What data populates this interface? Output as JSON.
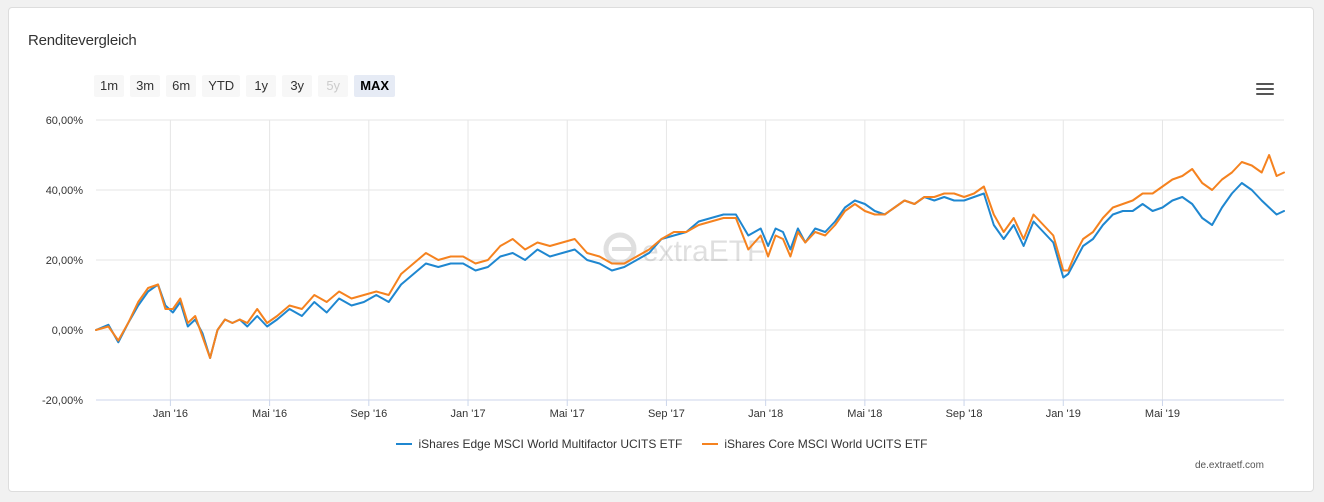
{
  "card": {
    "title": "Renditevergleich"
  },
  "range_selector": {
    "buttons": [
      {
        "label": "1m",
        "state": "normal"
      },
      {
        "label": "3m",
        "state": "normal"
      },
      {
        "label": "6m",
        "state": "normal"
      },
      {
        "label": "YTD",
        "state": "normal"
      },
      {
        "label": "1y",
        "state": "normal"
      },
      {
        "label": "3y",
        "state": "normal"
      },
      {
        "label": "5y",
        "state": "disabled"
      },
      {
        "label": "MAX",
        "state": "selected"
      }
    ]
  },
  "menu": {
    "icon": "hamburger-menu-icon"
  },
  "watermark": {
    "text": "extraETF",
    "icon": "extraetf-logo-icon"
  },
  "credit": "de.extraetf.com",
  "chart_data": {
    "type": "line",
    "x_tick_labels": [
      "Jan '16",
      "Mai '16",
      "Sep '16",
      "Jan '17",
      "Mai '17",
      "Sep '17",
      "Jan '18",
      "Mai '18",
      "Sep '18",
      "Jan '19",
      "Mai '19"
    ],
    "x_ticks_month_index": [
      3,
      7,
      11,
      15,
      19,
      23,
      27,
      31,
      35,
      39,
      43
    ],
    "x_range_month_index": [
      0,
      47.9
    ],
    "y_tick_labels": [
      "60,00%",
      "40,00%",
      "20,00%",
      "0,00%",
      "-20,00%"
    ],
    "y_ticks": [
      60,
      40,
      20,
      0,
      -20
    ],
    "ylim": [
      -20,
      60
    ],
    "grid": "on",
    "legend_position": "bottom-center",
    "series": [
      {
        "name": "iShares Edge MSCI World Multifactor UCITS ETF",
        "color": "#1f87d0",
        "x": [
          0,
          0.5,
          0.9,
          1.3,
          1.7,
          2.1,
          2.5,
          2.8,
          3.1,
          3.4,
          3.7,
          4.0,
          4.3,
          4.6,
          4.9,
          5.2,
          5.5,
          5.8,
          6.1,
          6.5,
          6.9,
          7.3,
          7.8,
          8.3,
          8.8,
          9.3,
          9.8,
          10.3,
          10.8,
          11.3,
          11.8,
          12.3,
          12.8,
          13.3,
          13.8,
          14.3,
          14.8,
          15.3,
          15.8,
          16.3,
          16.8,
          17.3,
          17.8,
          18.3,
          18.8,
          19.3,
          19.8,
          20.3,
          20.8,
          21.3,
          21.8,
          22.3,
          22.8,
          23.3,
          23.8,
          24.3,
          24.8,
          25.3,
          25.8,
          26.3,
          26.8,
          27.1,
          27.4,
          27.7,
          28.0,
          28.3,
          28.6,
          29.0,
          29.4,
          29.8,
          30.2,
          30.6,
          31.0,
          31.4,
          31.8,
          32.2,
          32.6,
          33.0,
          33.4,
          33.8,
          34.2,
          34.6,
          35.0,
          35.4,
          35.8,
          36.2,
          36.6,
          37.0,
          37.4,
          37.8,
          38.2,
          38.6,
          38.8,
          39.0,
          39.2,
          39.5,
          39.8,
          40.2,
          40.6,
          41.0,
          41.4,
          41.8,
          42.2,
          42.6,
          43.0,
          43.4,
          43.8,
          44.2,
          44.6,
          45.0,
          45.4,
          45.8,
          46.2,
          46.6,
          47.0,
          47.3,
          47.6,
          47.9
        ],
        "values": [
          0,
          1.5,
          -3.5,
          2,
          7,
          11,
          13,
          7,
          5,
          8,
          1,
          3,
          -1,
          -8,
          0,
          3,
          2,
          3,
          1,
          4,
          1,
          3,
          6,
          4,
          8,
          5,
          9,
          7,
          8,
          10,
          8,
          13,
          16,
          19,
          18,
          19,
          19,
          17,
          18,
          21,
          22,
          20,
          23,
          21,
          22,
          23,
          20,
          19,
          17,
          18,
          20,
          22,
          26,
          27,
          28,
          31,
          32,
          33,
          33,
          27,
          29,
          24,
          29,
          28,
          23,
          29,
          25,
          29,
          28,
          31,
          35,
          37,
          36,
          34,
          33,
          35,
          37,
          36,
          38,
          37,
          38,
          37,
          37,
          38,
          39,
          30,
          26,
          30,
          24,
          31,
          28,
          25,
          20,
          15,
          16,
          20,
          24,
          26,
          30,
          33,
          34,
          34,
          36,
          34,
          35,
          37,
          38,
          36,
          32,
          30,
          35,
          39,
          42,
          40,
          37,
          35,
          33,
          34
        ]
      },
      {
        "name": "iShares Core MSCI World UCITS ETF",
        "color": "#f5821f",
        "x": [
          0,
          0.5,
          0.9,
          1.3,
          1.7,
          2.1,
          2.5,
          2.8,
          3.1,
          3.4,
          3.7,
          4.0,
          4.3,
          4.6,
          4.9,
          5.2,
          5.5,
          5.8,
          6.1,
          6.5,
          6.9,
          7.3,
          7.8,
          8.3,
          8.8,
          9.3,
          9.8,
          10.3,
          10.8,
          11.3,
          11.8,
          12.3,
          12.8,
          13.3,
          13.8,
          14.3,
          14.8,
          15.3,
          15.8,
          16.3,
          16.8,
          17.3,
          17.8,
          18.3,
          18.8,
          19.3,
          19.8,
          20.3,
          20.8,
          21.3,
          21.8,
          22.3,
          22.8,
          23.3,
          23.8,
          24.3,
          24.8,
          25.3,
          25.8,
          26.3,
          26.8,
          27.1,
          27.4,
          27.7,
          28.0,
          28.3,
          28.6,
          29.0,
          29.4,
          29.8,
          30.2,
          30.6,
          31.0,
          31.4,
          31.8,
          32.2,
          32.6,
          33.0,
          33.4,
          33.8,
          34.2,
          34.6,
          35.0,
          35.4,
          35.8,
          36.2,
          36.6,
          37.0,
          37.4,
          37.8,
          38.2,
          38.6,
          38.8,
          39.0,
          39.2,
          39.5,
          39.8,
          40.2,
          40.6,
          41.0,
          41.4,
          41.8,
          42.2,
          42.6,
          43.0,
          43.4,
          43.8,
          44.2,
          44.6,
          45.0,
          45.4,
          45.8,
          46.2,
          46.6,
          47.0,
          47.3,
          47.6,
          47.9
        ],
        "values": [
          0,
          1,
          -3,
          2,
          8,
          12,
          13,
          6,
          6,
          9,
          2,
          4,
          -2,
          -8,
          0,
          3,
          2,
          3,
          2,
          6,
          2,
          4,
          7,
          6,
          10,
          8,
          11,
          9,
          10,
          11,
          10,
          16,
          19,
          22,
          20,
          21,
          21,
          19,
          20,
          24,
          26,
          23,
          25,
          24,
          25,
          26,
          22,
          21,
          19,
          19,
          21,
          23,
          26,
          28,
          28,
          30,
          31,
          32,
          32,
          23,
          27,
          21,
          27,
          26,
          21,
          28,
          25,
          28,
          27,
          30,
          34,
          36,
          34,
          33,
          33,
          35,
          37,
          36,
          38,
          38,
          39,
          39,
          38,
          39,
          41,
          33,
          28,
          32,
          26,
          33,
          30,
          27,
          22,
          17,
          17,
          22,
          26,
          28,
          32,
          35,
          36,
          37,
          39,
          39,
          41,
          43,
          44,
          46,
          42,
          40,
          43,
          45,
          48,
          47,
          45,
          50,
          44,
          45
        ]
      }
    ]
  }
}
